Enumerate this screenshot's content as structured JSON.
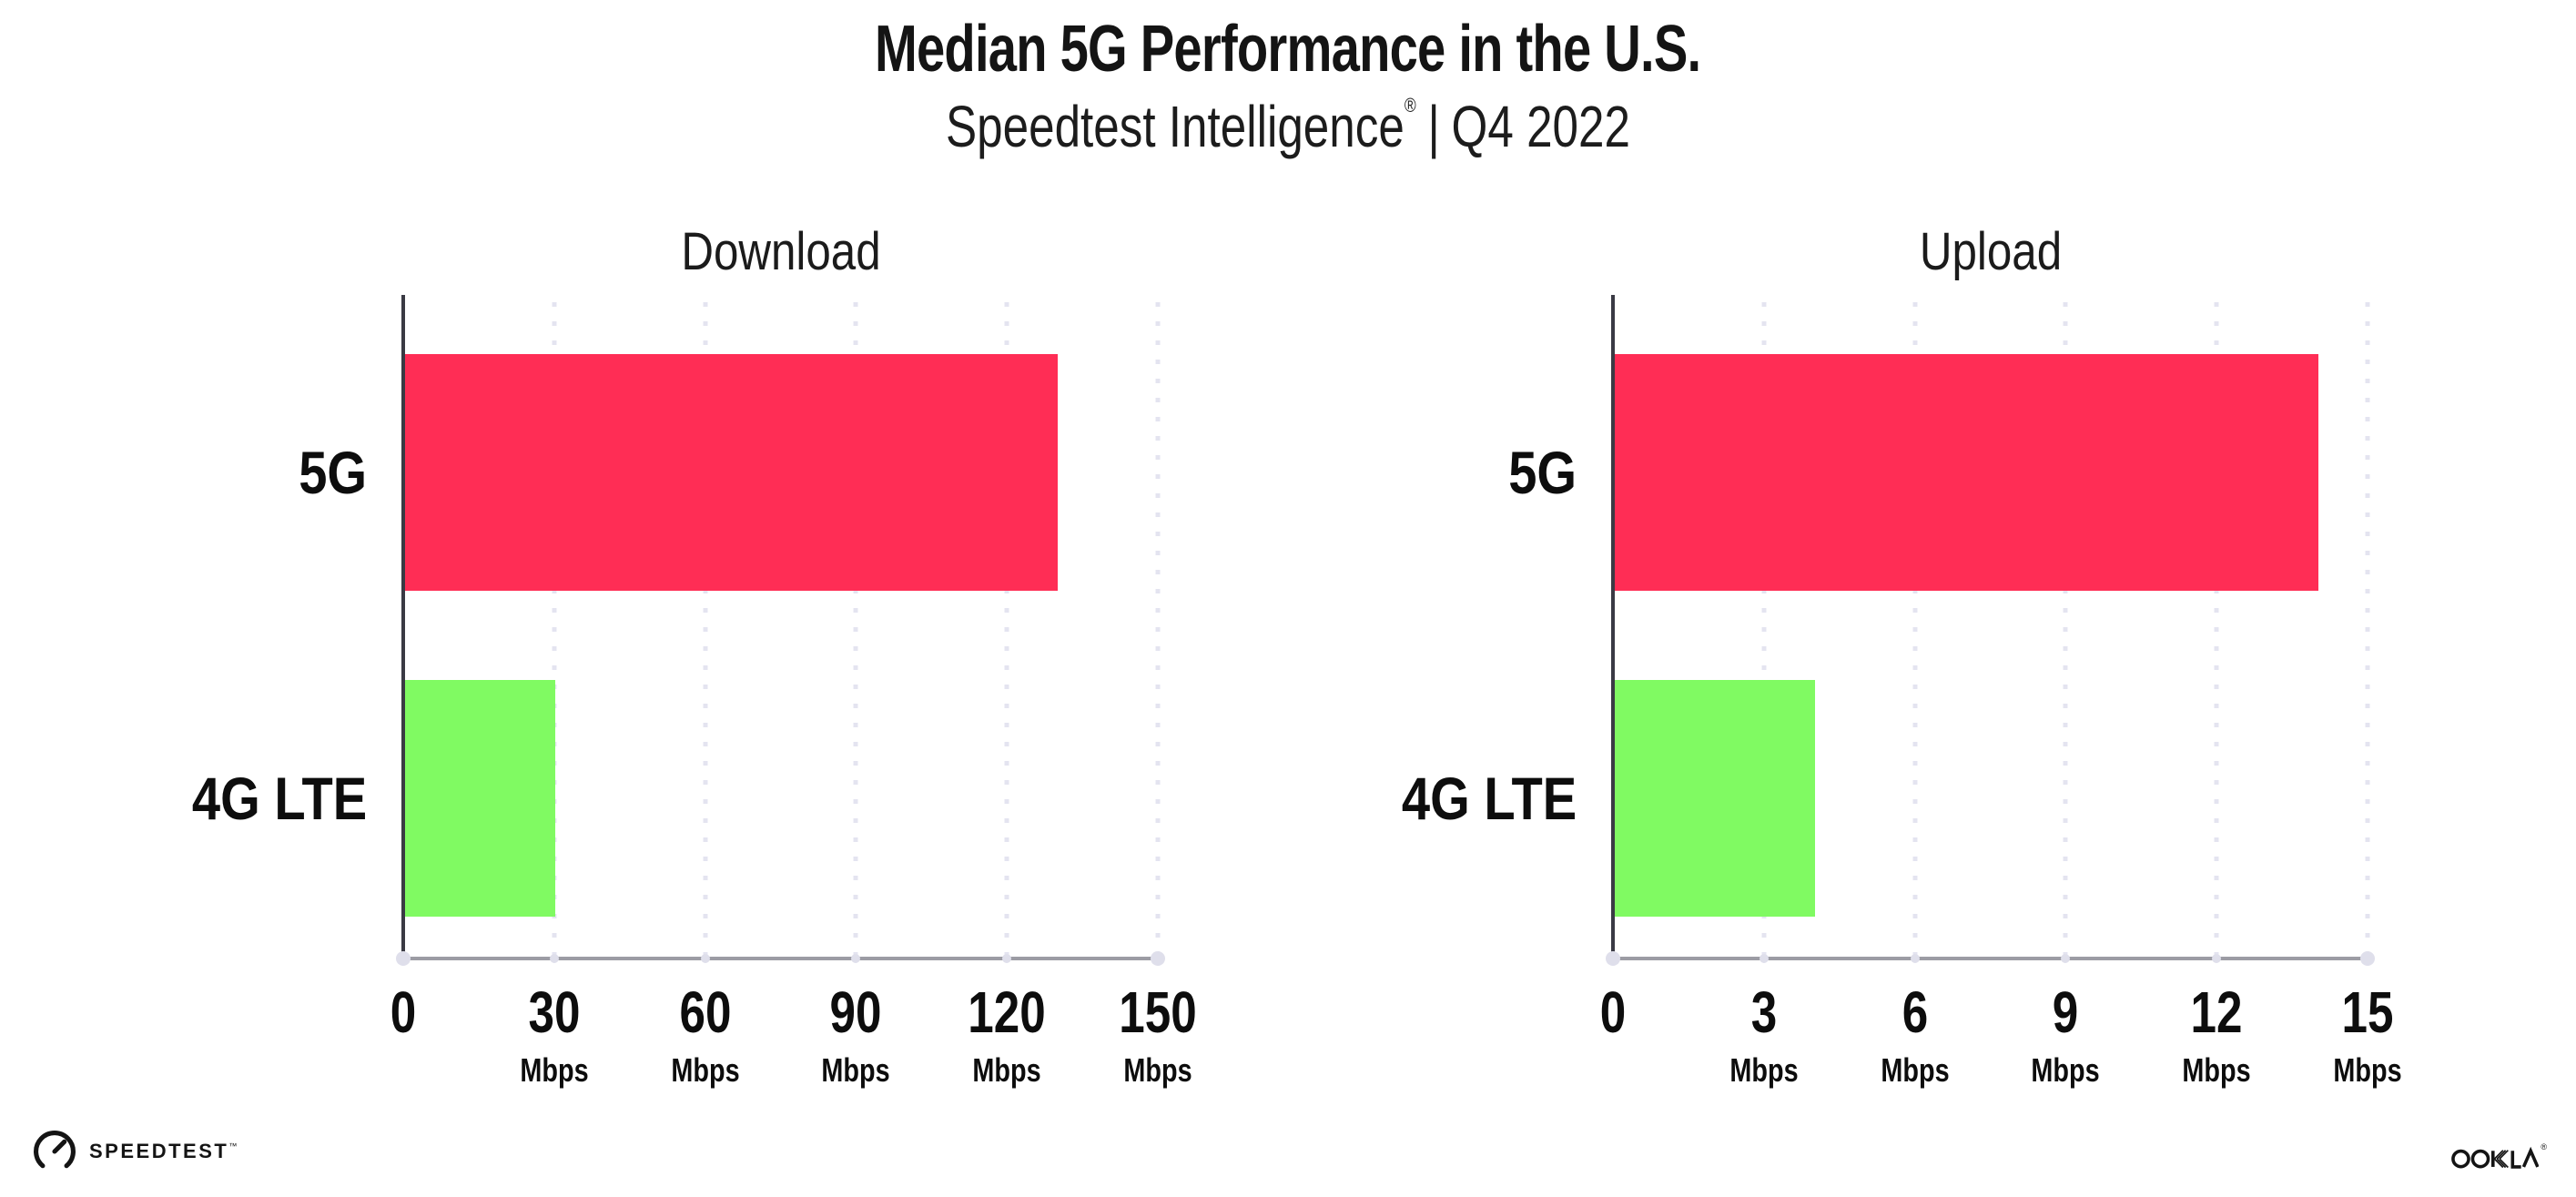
{
  "header": {
    "title": "Median 5G Performance in the U.S.",
    "subtitle_brand": "Speedtest Intelligence",
    "subtitle_registered": "®",
    "subtitle_separator": "|",
    "subtitle_period": "Q4 2022"
  },
  "chart_data": [
    {
      "type": "bar",
      "orientation": "horizontal",
      "title": "Download",
      "categories": [
        "5G",
        "4G LTE"
      ],
      "values": [
        130,
        30
      ],
      "unit": "Mbps",
      "xlim": [
        0,
        150
      ],
      "tick_values": [
        0,
        30,
        60,
        90,
        120,
        150
      ],
      "ticks": [
        {
          "label": "0",
          "unit": ""
        },
        {
          "label": "30",
          "unit": "Mbps"
        },
        {
          "label": "60",
          "unit": "Mbps"
        },
        {
          "label": "90",
          "unit": "Mbps"
        },
        {
          "label": "120",
          "unit": "Mbps"
        },
        {
          "label": "150",
          "unit": "Mbps"
        }
      ],
      "bar_colors": [
        "#FF2D55",
        "#80FA62"
      ],
      "grid": "dotted-vertical",
      "legend": "none"
    },
    {
      "type": "bar",
      "orientation": "horizontal",
      "title": "Upload",
      "categories": [
        "5G",
        "4G LTE"
      ],
      "values": [
        14,
        4
      ],
      "unit": "Mbps",
      "xlim": [
        0,
        15
      ],
      "tick_values": [
        0,
        3,
        6,
        9,
        12,
        15
      ],
      "ticks": [
        {
          "label": "0",
          "unit": ""
        },
        {
          "label": "3",
          "unit": "Mbps"
        },
        {
          "label": "6",
          "unit": "Mbps"
        },
        {
          "label": "9",
          "unit": "Mbps"
        },
        {
          "label": "12",
          "unit": "Mbps"
        },
        {
          "label": "15",
          "unit": "Mbps"
        }
      ],
      "bar_colors": [
        "#FF2D55",
        "#80FA62"
      ],
      "grid": "dotted-vertical",
      "legend": "none"
    }
  ],
  "footer": {
    "speedtest_label": "SPEEDTEST",
    "speedtest_mark": "™",
    "ookla_label": "OOKLA",
    "ookla_mark": "®"
  },
  "colors": {
    "bar_5g": "#FF2D55",
    "bar_4g_lte": "#80FA62",
    "gridline": "#E4E4F0",
    "x_axis_line": "#9C9CA4",
    "axis_marker_dot": "#DFDFEB",
    "y_axis_line": "#3A3A44",
    "text": "#141414"
  }
}
